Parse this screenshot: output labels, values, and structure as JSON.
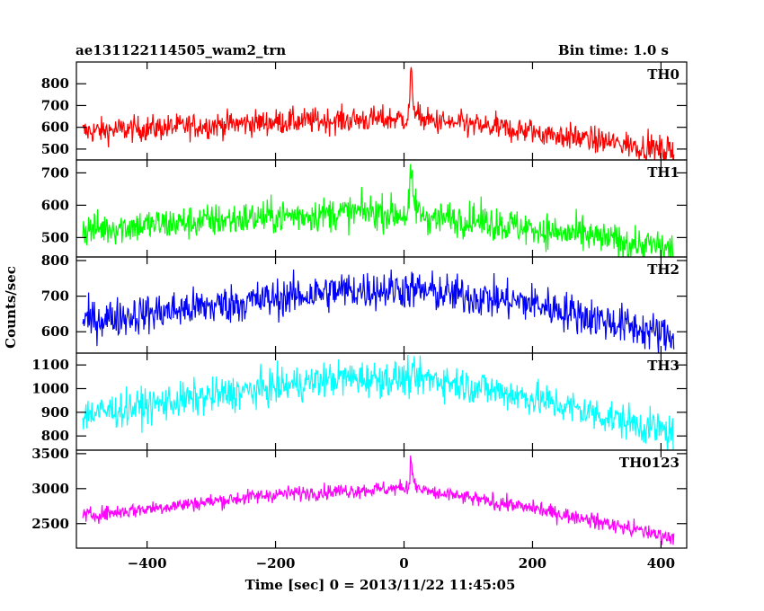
{
  "header": {
    "title": "ae131122114505_wam2_trn",
    "bin_time": "Bin time: 1.0 s"
  },
  "chart_data": {
    "type": "line",
    "xlabel": "Time [sec] 0 = 2013/11/22 11:45:05",
    "ylabel": "Counts/sec",
    "xlim": [
      -510,
      440
    ],
    "x_ticks": [
      -400,
      -200,
      0,
      200,
      400
    ],
    "x_tick_labels": [
      "−400",
      "−200",
      "0",
      "200",
      "400"
    ],
    "x_range": [
      -500,
      420
    ],
    "grid": false,
    "panels": [
      {
        "name": "TH0",
        "color": "#ff0000",
        "ylim": [
          450,
          900
        ],
        "y_ticks": [
          500,
          600,
          700,
          800
        ],
        "trend": [
          [
            -500,
            580
          ],
          [
            -200,
            625
          ],
          [
            0,
            640
          ],
          [
            200,
            580
          ],
          [
            420,
            490
          ]
        ],
        "noise": 30,
        "peak": {
          "x": 10,
          "value": 900
        }
      },
      {
        "name": "TH1",
        "color": "#00ff00",
        "ylim": [
          440,
          740
        ],
        "y_ticks": [
          500,
          600,
          700
        ],
        "trend": [
          [
            -500,
            525
          ],
          [
            -200,
            565
          ],
          [
            -50,
            580
          ],
          [
            100,
            555
          ],
          [
            420,
            465
          ]
        ],
        "noise": 27,
        "peak": {
          "x": 10,
          "value": 735
        }
      },
      {
        "name": "TH2",
        "color": "#0000ff",
        "ylim": [
          540,
          810
        ],
        "y_ticks": [
          600,
          700,
          800
        ],
        "trend": [
          [
            -500,
            630
          ],
          [
            -100,
            715
          ],
          [
            0,
            720
          ],
          [
            200,
            680
          ],
          [
            420,
            585
          ]
        ],
        "noise": 28,
        "peak": null
      },
      {
        "name": "TH3",
        "color": "#00ffff",
        "ylim": [
          740,
          1150
        ],
        "y_ticks": [
          800,
          900,
          1000,
          1100
        ],
        "trend": [
          [
            -500,
            890
          ],
          [
            -100,
            1045
          ],
          [
            50,
            1040
          ],
          [
            200,
            960
          ],
          [
            420,
            810
          ]
        ],
        "noise": 38,
        "peak": null
      },
      {
        "name": "TH0123",
        "color": "#ff00ff",
        "ylim": [
          2150,
          3550
        ],
        "y_ticks": [
          2500,
          3000,
          3500
        ],
        "trend": [
          [
            -500,
            2610
          ],
          [
            -200,
            2920
          ],
          [
            0,
            3010
          ],
          [
            200,
            2720
          ],
          [
            420,
            2300
          ]
        ],
        "noise": 55,
        "peak": {
          "x": 10,
          "value": 3520
        }
      }
    ]
  }
}
